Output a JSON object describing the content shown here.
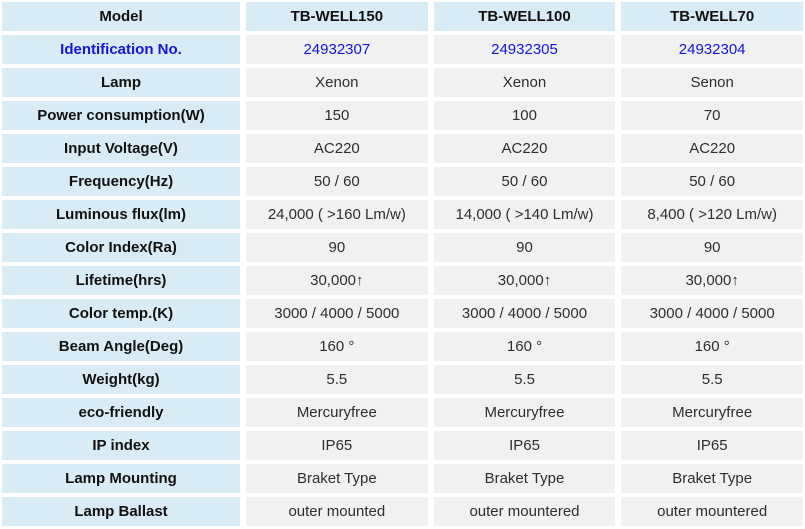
{
  "colors": {
    "label_cell_bg": "#d9ecf5",
    "data_cell_bg": "#f1f1f1",
    "gap_color": "#ffffff",
    "body_text": "#2e2e2e",
    "label_text": "#111111",
    "accent_blue": "#1414dd"
  },
  "table": {
    "rows": [
      {
        "kind": "header",
        "label": "Model",
        "values": [
          "TB-WELL150",
          "TB-WELL100",
          "TB-WELL70"
        ]
      },
      {
        "kind": "accent",
        "label": "Identification No.",
        "values": [
          "24932307",
          "24932305",
          "24932304"
        ]
      },
      {
        "kind": "normal",
        "label": "Lamp",
        "values": [
          "Xenon",
          "Xenon",
          "Senon"
        ]
      },
      {
        "kind": "normal",
        "label": "Power consumption(W)",
        "values": [
          "150",
          "100",
          "70"
        ]
      },
      {
        "kind": "normal",
        "label": "Input Voltage(V)",
        "values": [
          "AC220",
          "AC220",
          "AC220"
        ]
      },
      {
        "kind": "normal",
        "label": "Frequency(Hz)",
        "values": [
          "50 / 60",
          "50 / 60",
          "50 / 60"
        ]
      },
      {
        "kind": "normal",
        "label": "Luminous flux(lm)",
        "values": [
          "24,000 ( >160 Lm/w)",
          "14,000 ( >140 Lm/w)",
          "8,400 ( >120 Lm/w)"
        ]
      },
      {
        "kind": "normal",
        "label": "Color Index(Ra)",
        "values": [
          "90",
          "90",
          "90"
        ]
      },
      {
        "kind": "normal",
        "label": "Lifetime(hrs)",
        "values": [
          "30,000↑",
          "30,000↑",
          "30,000↑"
        ]
      },
      {
        "kind": "normal",
        "label": "Color temp.(K)",
        "values": [
          "3000 / 4000 / 5000",
          "3000 / 4000 / 5000",
          "3000 / 4000 / 5000"
        ]
      },
      {
        "kind": "normal",
        "label": "Beam Angle(Deg)",
        "values": [
          "160 °",
          "160 °",
          "160 °"
        ]
      },
      {
        "kind": "normal",
        "label": "Weight(kg)",
        "values": [
          "5.5",
          "5.5",
          "5.5"
        ]
      },
      {
        "kind": "normal",
        "label": "eco-friendly",
        "values": [
          "Mercuryfree",
          "Mercuryfree",
          "Mercuryfree"
        ]
      },
      {
        "kind": "normal",
        "label": "IP index",
        "values": [
          "IP65",
          "IP65",
          "IP65"
        ]
      },
      {
        "kind": "normal",
        "label": "Lamp Mounting",
        "values": [
          "Braket Type",
          "Braket Type",
          "Braket Type"
        ]
      },
      {
        "kind": "normal",
        "label": "Lamp Ballast",
        "values": [
          "outer mounted",
          "outer mountered",
          "outer mountered"
        ]
      }
    ]
  }
}
